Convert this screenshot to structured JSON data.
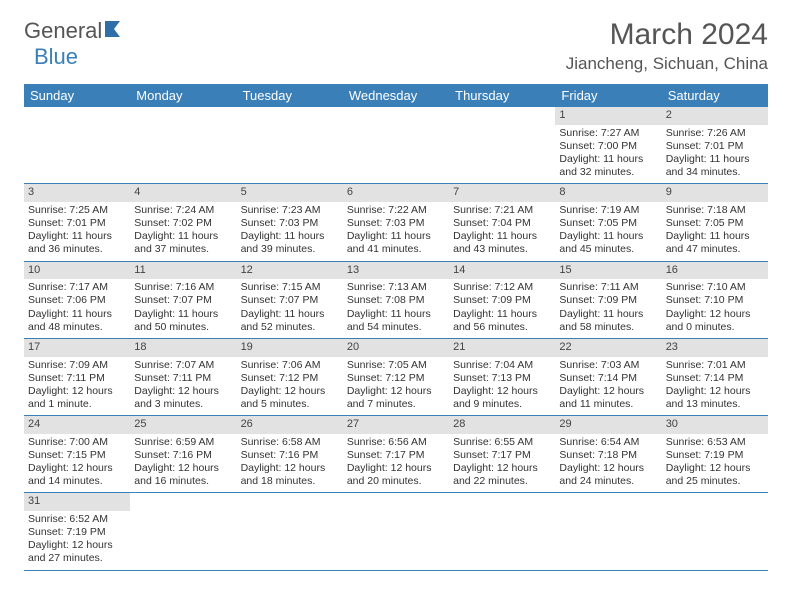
{
  "logo": {
    "part1": "General",
    "part2": "Blue"
  },
  "title": "March 2024",
  "location": "Jiancheng, Sichuan, China",
  "colors": {
    "header_bg": "#3a7fb8",
    "header_fg": "#ffffff",
    "daynum_bg": "#e2e2e2",
    "border": "#3a7fb8",
    "text": "#333333",
    "title_color": "#555555"
  },
  "weekdays": [
    "Sunday",
    "Monday",
    "Tuesday",
    "Wednesday",
    "Thursday",
    "Friday",
    "Saturday"
  ],
  "layout": {
    "blank_leading_cells": 5,
    "days_in_month": 31
  },
  "days": {
    "1": {
      "sunrise": "7:27 AM",
      "sunset": "7:00 PM",
      "daylight": "11 hours and 32 minutes."
    },
    "2": {
      "sunrise": "7:26 AM",
      "sunset": "7:01 PM",
      "daylight": "11 hours and 34 minutes."
    },
    "3": {
      "sunrise": "7:25 AM",
      "sunset": "7:01 PM",
      "daylight": "11 hours and 36 minutes."
    },
    "4": {
      "sunrise": "7:24 AM",
      "sunset": "7:02 PM",
      "daylight": "11 hours and 37 minutes."
    },
    "5": {
      "sunrise": "7:23 AM",
      "sunset": "7:03 PM",
      "daylight": "11 hours and 39 minutes."
    },
    "6": {
      "sunrise": "7:22 AM",
      "sunset": "7:03 PM",
      "daylight": "11 hours and 41 minutes."
    },
    "7": {
      "sunrise": "7:21 AM",
      "sunset": "7:04 PM",
      "daylight": "11 hours and 43 minutes."
    },
    "8": {
      "sunrise": "7:19 AM",
      "sunset": "7:05 PM",
      "daylight": "11 hours and 45 minutes."
    },
    "9": {
      "sunrise": "7:18 AM",
      "sunset": "7:05 PM",
      "daylight": "11 hours and 47 minutes."
    },
    "10": {
      "sunrise": "7:17 AM",
      "sunset": "7:06 PM",
      "daylight": "11 hours and 48 minutes."
    },
    "11": {
      "sunrise": "7:16 AM",
      "sunset": "7:07 PM",
      "daylight": "11 hours and 50 minutes."
    },
    "12": {
      "sunrise": "7:15 AM",
      "sunset": "7:07 PM",
      "daylight": "11 hours and 52 minutes."
    },
    "13": {
      "sunrise": "7:13 AM",
      "sunset": "7:08 PM",
      "daylight": "11 hours and 54 minutes."
    },
    "14": {
      "sunrise": "7:12 AM",
      "sunset": "7:09 PM",
      "daylight": "11 hours and 56 minutes."
    },
    "15": {
      "sunrise": "7:11 AM",
      "sunset": "7:09 PM",
      "daylight": "11 hours and 58 minutes."
    },
    "16": {
      "sunrise": "7:10 AM",
      "sunset": "7:10 PM",
      "daylight": "12 hours and 0 minutes."
    },
    "17": {
      "sunrise": "7:09 AM",
      "sunset": "7:11 PM",
      "daylight": "12 hours and 1 minute."
    },
    "18": {
      "sunrise": "7:07 AM",
      "sunset": "7:11 PM",
      "daylight": "12 hours and 3 minutes."
    },
    "19": {
      "sunrise": "7:06 AM",
      "sunset": "7:12 PM",
      "daylight": "12 hours and 5 minutes."
    },
    "20": {
      "sunrise": "7:05 AM",
      "sunset": "7:12 PM",
      "daylight": "12 hours and 7 minutes."
    },
    "21": {
      "sunrise": "7:04 AM",
      "sunset": "7:13 PM",
      "daylight": "12 hours and 9 minutes."
    },
    "22": {
      "sunrise": "7:03 AM",
      "sunset": "7:14 PM",
      "daylight": "12 hours and 11 minutes."
    },
    "23": {
      "sunrise": "7:01 AM",
      "sunset": "7:14 PM",
      "daylight": "12 hours and 13 minutes."
    },
    "24": {
      "sunrise": "7:00 AM",
      "sunset": "7:15 PM",
      "daylight": "12 hours and 14 minutes."
    },
    "25": {
      "sunrise": "6:59 AM",
      "sunset": "7:16 PM",
      "daylight": "12 hours and 16 minutes."
    },
    "26": {
      "sunrise": "6:58 AM",
      "sunset": "7:16 PM",
      "daylight": "12 hours and 18 minutes."
    },
    "27": {
      "sunrise": "6:56 AM",
      "sunset": "7:17 PM",
      "daylight": "12 hours and 20 minutes."
    },
    "28": {
      "sunrise": "6:55 AM",
      "sunset": "7:17 PM",
      "daylight": "12 hours and 22 minutes."
    },
    "29": {
      "sunrise": "6:54 AM",
      "sunset": "7:18 PM",
      "daylight": "12 hours and 24 minutes."
    },
    "30": {
      "sunrise": "6:53 AM",
      "sunset": "7:19 PM",
      "daylight": "12 hours and 25 minutes."
    },
    "31": {
      "sunrise": "6:52 AM",
      "sunset": "7:19 PM",
      "daylight": "12 hours and 27 minutes."
    }
  },
  "labels": {
    "sunrise": "Sunrise: ",
    "sunset": "Sunset: ",
    "daylight": "Daylight: "
  }
}
